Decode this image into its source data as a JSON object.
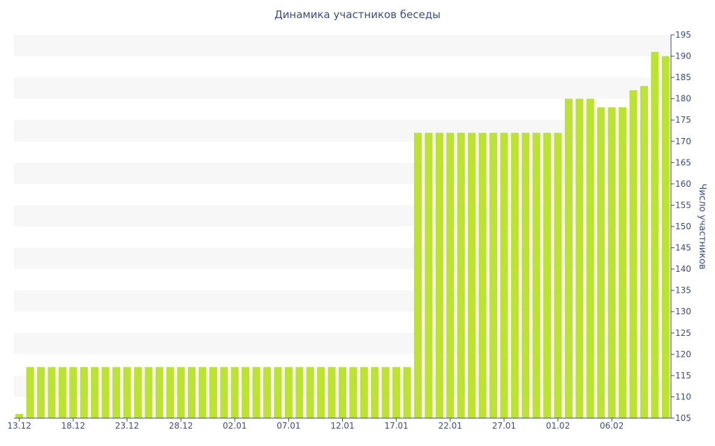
{
  "chart_data": {
    "type": "bar",
    "title": "Динамика участников беседы",
    "ylabel": "Число участников",
    "xlabel": "",
    "ylim": [
      105,
      195
    ],
    "y_ticks": [
      105,
      110,
      115,
      120,
      125,
      130,
      135,
      140,
      145,
      150,
      155,
      160,
      165,
      170,
      175,
      180,
      185,
      190,
      195
    ],
    "x_tick_labels": [
      "13.12",
      "18.12",
      "23.12",
      "28.12",
      "02.01",
      "07.01",
      "12.01",
      "17.01",
      "22.01",
      "27.01",
      "01.02",
      "06.02"
    ],
    "x_tick_every": 5,
    "grid": "horizontal bands",
    "bar_color": "#bde332",
    "band_color": "#f7f7f7",
    "axis_color": "#3a4a8a",
    "values": [
      106,
      117,
      117,
      117,
      117,
      117,
      117,
      117,
      117,
      117,
      117,
      117,
      117,
      117,
      117,
      117,
      117,
      117,
      117,
      117,
      117,
      117,
      117,
      117,
      117,
      117,
      117,
      117,
      117,
      117,
      117,
      117,
      117,
      117,
      117,
      117,
      117,
      172,
      172,
      172,
      172,
      172,
      172,
      172,
      172,
      172,
      172,
      172,
      172,
      172,
      172,
      180,
      180,
      180,
      178,
      178,
      178,
      182,
      183,
      191,
      190
    ]
  }
}
